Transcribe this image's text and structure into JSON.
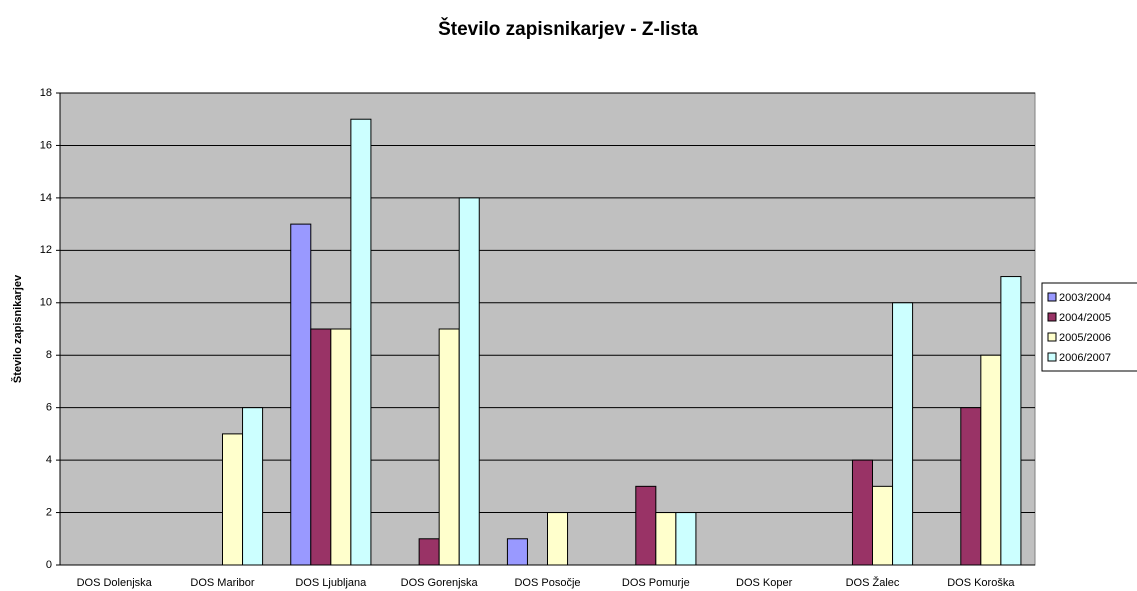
{
  "chart_data": {
    "type": "bar",
    "title": "Število zapisnikarjev - Z-lista",
    "ylabel": "Število zapisnikarjev",
    "categories": [
      "DOS Dolenjska",
      "DOS Maribor",
      "DOS Ljubljana",
      "DOS Gorenjska",
      "DOS Posočje",
      "DOS Pomurje",
      "DOS Koper",
      "DOS Žalec",
      "DOS Koroška"
    ],
    "series": [
      {
        "name": "2003/2004",
        "color": "#9999ff",
        "values": [
          0,
          0,
          13,
          0,
          1,
          0,
          0,
          0,
          0
        ]
      },
      {
        "name": "2004/2005",
        "color": "#993366",
        "values": [
          0,
          0,
          9,
          1,
          0,
          3,
          0,
          4,
          6
        ]
      },
      {
        "name": "2005/2006",
        "color": "#ffffcc",
        "values": [
          0,
          5,
          9,
          9,
          2,
          2,
          0,
          3,
          8
        ]
      },
      {
        "name": "2006/2007",
        "color": "#ccffff",
        "values": [
          0,
          6,
          17,
          14,
          0,
          2,
          0,
          10,
          11
        ]
      }
    ],
    "ylim": [
      0,
      18
    ],
    "yticks": [
      0,
      2,
      4,
      6,
      8,
      10,
      12,
      14,
      16,
      18
    ],
    "grid": true,
    "legend": "right"
  }
}
